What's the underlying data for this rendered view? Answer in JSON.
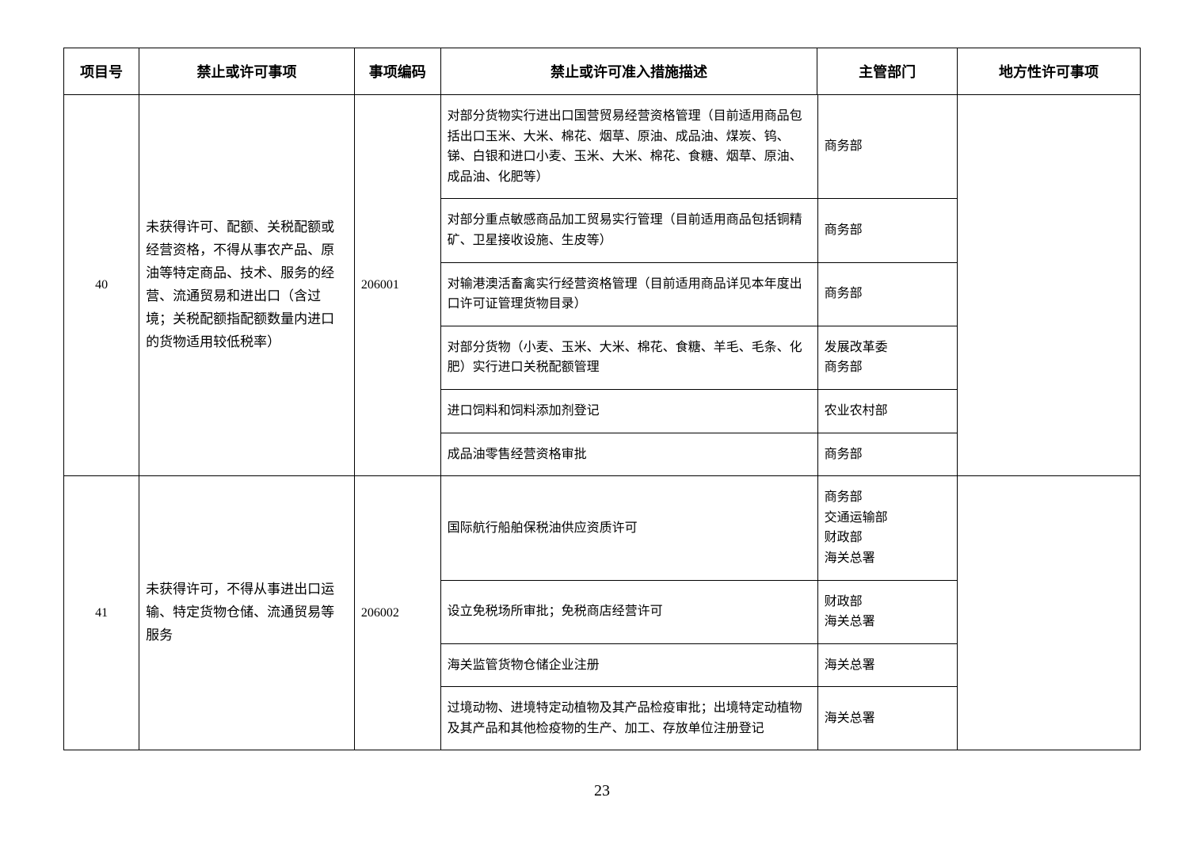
{
  "table": {
    "headers": [
      "项目号",
      "禁止或许可事项",
      "事项编码",
      "禁止或许可准入措施描述",
      "主管部门",
      "地方性许可事项"
    ],
    "rows": [
      {
        "item_no": "40",
        "matter": "未获得许可、配额、关税配额或经营资格，不得从事农产品、原油等特定商品、技术、服务的经营、流通贸易和进出口（含过境；关税配额指配额数量内进口的货物适用较低税率）",
        "code": "206001",
        "sub": [
          {
            "desc": "对部分货物实行进出口国营贸易经营资格管理（目前适用商品包括出口玉米、大米、棉花、烟草、原油、成品油、煤炭、钨、锑、白银和进口小麦、玉米、大米、棉花、食糖、烟草、原油、成品油、化肥等）",
            "dept": "商务部"
          },
          {
            "desc": "对部分重点敏感商品加工贸易实行管理（目前适用商品包括铜精矿、卫星接收设施、生皮等）",
            "dept": "商务部"
          },
          {
            "desc": "对输港澳活畜禽实行经营资格管理（目前适用商品详见本年度出口许可证管理货物目录）",
            "dept": "商务部"
          },
          {
            "desc": "对部分货物（小麦、玉米、大米、棉花、食糖、羊毛、毛条、化肥）实行进口关税配额管理",
            "dept": "发展改革委\n商务部"
          },
          {
            "desc": "进口饲料和饲料添加剂登记",
            "dept": "农业农村部"
          },
          {
            "desc": "成品油零售经营资格审批",
            "dept": "商务部"
          }
        ],
        "local": ""
      },
      {
        "item_no": "41",
        "matter": "未获得许可，不得从事进出口运输、特定货物仓储、流通贸易等服务",
        "code": "206002",
        "sub": [
          {
            "desc": "国际航行船舶保税油供应资质许可",
            "dept": "商务部\n交通运输部\n财政部\n海关总署"
          },
          {
            "desc": "设立免税场所审批；免税商店经营许可",
            "dept": "财政部\n海关总署"
          },
          {
            "desc": "海关监管货物仓储企业注册",
            "dept": "海关总署"
          },
          {
            "desc": "过境动物、进境特定动植物及其产品检疫审批；出境特定动植物及其产品和其他检疫物的生产、加工、存放单位注册登记",
            "dept": "海关总署"
          }
        ],
        "local": ""
      }
    ]
  },
  "page_number": "23"
}
